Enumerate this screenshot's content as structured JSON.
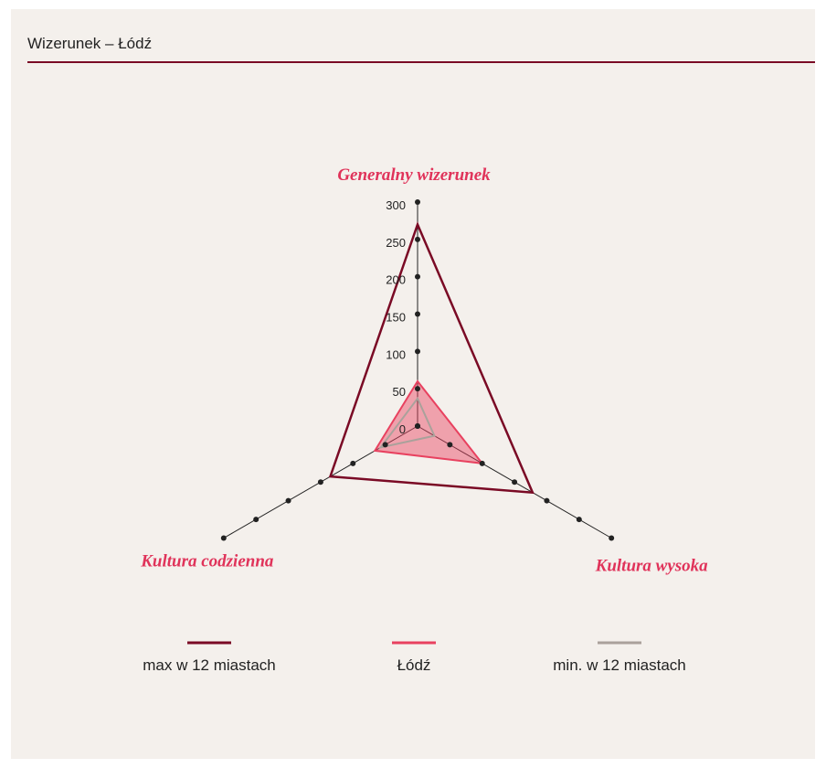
{
  "chart_data": {
    "type": "radar",
    "title": "Wizerunek – Łódź",
    "categories": [
      "Generalny wizerunek",
      "Kultura wysoka",
      "Kultura codzienna"
    ],
    "series": [
      {
        "name": "max w 12 miastach",
        "color": "#7a0a25",
        "values": [
          270,
          178,
          135
        ]
      },
      {
        "name": "Łódź",
        "color": "#e8415f",
        "values": [
          60,
          100,
          66
        ]
      },
      {
        "name": "min. w 12 miastach",
        "color": "#aaa19b",
        "values": [
          37,
          26,
          57
        ]
      }
    ],
    "rlim": [
      0,
      300
    ],
    "rticks": [
      0,
      50,
      100,
      150,
      200,
      250,
      300
    ]
  }
}
